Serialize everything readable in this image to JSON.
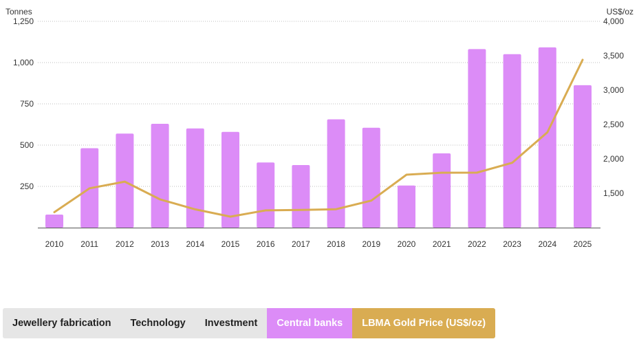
{
  "chart_data": {
    "type": "bar+line",
    "title": "",
    "left_axis_unit": "Tonnes",
    "right_axis_unit": "US$/oz",
    "categories": [
      "2010",
      "2011",
      "2012",
      "2013",
      "2014",
      "2015",
      "2016",
      "2017",
      "2018",
      "2019",
      "2020",
      "2021",
      "2022",
      "2023",
      "2024",
      "2025"
    ],
    "left_ticks": [
      "1,250",
      "1,000",
      "750",
      "500",
      "250"
    ],
    "left_tick_values": [
      1250,
      1000,
      750,
      500,
      250
    ],
    "ylim_left": [
      0,
      1250
    ],
    "right_ticks": [
      "4,000",
      "3,500",
      "3,000",
      "2,500",
      "2,000",
      "1,500"
    ],
    "right_tick_values": [
      4000,
      3500,
      3000,
      2500,
      2000,
      1500
    ],
    "ylim_right": [
      1000,
      4000
    ],
    "series": [
      {
        "name": "Central banks",
        "type": "bar",
        "axis": "left",
        "color": "#dc8cf7",
        "values": [
          79,
          481,
          570,
          629,
          601,
          580,
          395,
          379,
          656,
          605,
          255,
          450,
          1082,
          1051,
          1092,
          863
        ]
      },
      {
        "name": "LBMA Gold Price (US$/oz)",
        "type": "line",
        "axis": "right",
        "color": "#d9ac52",
        "values": [
          1225,
          1572,
          1669,
          1411,
          1266,
          1160,
          1251,
          1257,
          1268,
          1393,
          1770,
          1799,
          1800,
          1943,
          2386,
          3440
        ]
      }
    ],
    "grid": true
  },
  "legend": {
    "items": [
      {
        "label": "Jewellery fabrication",
        "active": false
      },
      {
        "label": "Technology",
        "active": false
      },
      {
        "label": "Investment",
        "active": false
      },
      {
        "label": "Central banks",
        "active": true
      },
      {
        "label": "LBMA Gold Price (US$/oz)",
        "active": true
      }
    ]
  }
}
